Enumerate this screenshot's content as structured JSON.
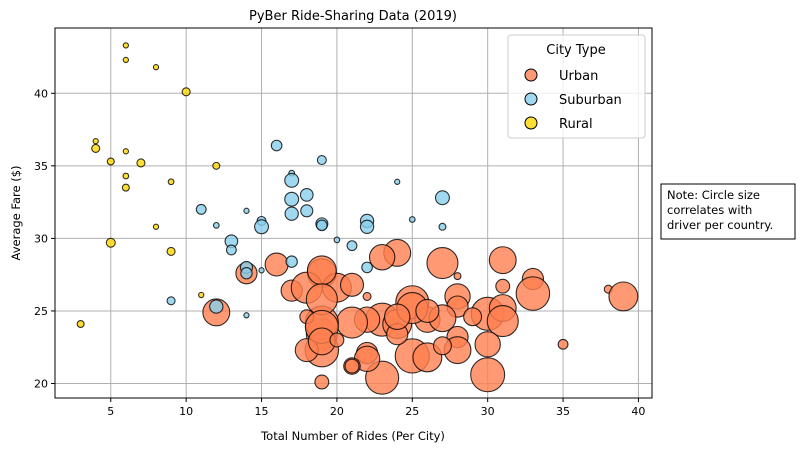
{
  "chart_data": {
    "type": "scatter",
    "title": "PyBer Ride-Sharing Data (2019)",
    "xlabel": "Total Number of Rides (Per City)",
    "ylabel": "Average Fare ($)",
    "xlim": [
      1.3,
      40.9
    ],
    "ylim": [
      19.0,
      44.5
    ],
    "xticks": [
      5,
      10,
      15,
      20,
      25,
      30,
      35,
      40
    ],
    "yticks": [
      20,
      25,
      30,
      35,
      40
    ],
    "grid": true,
    "legend": {
      "title": "City Type",
      "placement": "top-right"
    },
    "note": [
      "Note: Circle size",
      "correlates with",
      "driver per country."
    ],
    "point_fields": [
      "rides",
      "average_fare",
      "driver_count"
    ],
    "series": [
      {
        "name": "Urban",
        "color": "#FF7F50",
        "points": [
          [
            24,
            29.0,
            45
          ],
          [
            23,
            28.7,
            40
          ],
          [
            27,
            28.3,
            60
          ],
          [
            28,
            27.4,
            3
          ],
          [
            31,
            28.5,
            45
          ],
          [
            31,
            26.7,
            12
          ],
          [
            33,
            27.2,
            28
          ],
          [
            33,
            26.2,
            70
          ],
          [
            38,
            26.5,
            4
          ],
          [
            39,
            26.0,
            52
          ],
          [
            35,
            22.7,
            6
          ],
          [
            25,
            25.6,
            68
          ],
          [
            28,
            26.0,
            40
          ],
          [
            28,
            25.3,
            28
          ],
          [
            30,
            24.8,
            68
          ],
          [
            31,
            25.2,
            45
          ],
          [
            31,
            24.3,
            60
          ],
          [
            30,
            22.7,
            40
          ],
          [
            28,
            23.2,
            28
          ],
          [
            28,
            22.3,
            45
          ],
          [
            30,
            20.6,
            72
          ],
          [
            26,
            24.4,
            40
          ],
          [
            27,
            24.5,
            45
          ],
          [
            25,
            21.9,
            73
          ],
          [
            26,
            21.8,
            52
          ],
          [
            23,
            20.4,
            68
          ],
          [
            23,
            24.4,
            68
          ],
          [
            24,
            24.1,
            52
          ],
          [
            24,
            23.4,
            28
          ],
          [
            22,
            24.4,
            40
          ],
          [
            22,
            26.0,
            4
          ],
          [
            22,
            22.1,
            28
          ],
          [
            22,
            21.7,
            40
          ],
          [
            21,
            21.2,
            17
          ],
          [
            21,
            24.2,
            60
          ],
          [
            19,
            27.6,
            52
          ],
          [
            20,
            26.6,
            52
          ],
          [
            21,
            26.8,
            33
          ],
          [
            19,
            23.4,
            60
          ],
          [
            19,
            22.3,
            70
          ],
          [
            19,
            24.2,
            68
          ],
          [
            19,
            20.1,
            12
          ],
          [
            18,
            22.3,
            33
          ],
          [
            16,
            28.2,
            33
          ],
          [
            14,
            27.6,
            28
          ],
          [
            12,
            24.9,
            45
          ],
          [
            17,
            26.4,
            28
          ],
          [
            18,
            26.6,
            60
          ],
          [
            19,
            27.8,
            52
          ],
          [
            19,
            25.8,
            60
          ],
          [
            18,
            24.6,
            12
          ],
          [
            19,
            23.9,
            68
          ],
          [
            19,
            22.9,
            45
          ],
          [
            20,
            23.0,
            12
          ],
          [
            21,
            21.2,
            12
          ],
          [
            25,
            25.2,
            60
          ],
          [
            26,
            25.0,
            33
          ],
          [
            24,
            24.6,
            40
          ],
          [
            27,
            22.6,
            20
          ],
          [
            29,
            24.6,
            20
          ]
        ]
      },
      {
        "name": "Suburban",
        "color": "#87CEEB",
        "points": [
          [
            16,
            36.4,
            7
          ],
          [
            19,
            35.4,
            5
          ],
          [
            24,
            33.9,
            1
          ],
          [
            17,
            34.5,
            2
          ],
          [
            17,
            34.0,
            12
          ],
          [
            18,
            33.0,
            10
          ],
          [
            17,
            32.7,
            12
          ],
          [
            18,
            31.9,
            9
          ],
          [
            17,
            31.7,
            11
          ],
          [
            11,
            32.0,
            6
          ],
          [
            14,
            31.9,
            1
          ],
          [
            19,
            31.0,
            9
          ],
          [
            19,
            30.9,
            7
          ],
          [
            22,
            31.2,
            11
          ],
          [
            22,
            30.8,
            11
          ],
          [
            15,
            31.2,
            5
          ],
          [
            15,
            30.8,
            12
          ],
          [
            12,
            30.9,
            2
          ],
          [
            13,
            29.8,
            10
          ],
          [
            13,
            29.2,
            6
          ],
          [
            20,
            29.9,
            2
          ],
          [
            21,
            29.5,
            6
          ],
          [
            14,
            28.0,
            9
          ],
          [
            14,
            27.6,
            8
          ],
          [
            17,
            28.4,
            8
          ],
          [
            15,
            27.8,
            1
          ],
          [
            22,
            28.0,
            7
          ],
          [
            25,
            31.3,
            2
          ],
          [
            27,
            32.8,
            12
          ],
          [
            27,
            30.8,
            3
          ],
          [
            9,
            25.7,
            4
          ],
          [
            12,
            25.3,
            11
          ],
          [
            14,
            24.7,
            1
          ]
        ]
      },
      {
        "name": "Rural",
        "color": "#FFD700",
        "points": [
          [
            6,
            43.3,
            1
          ],
          [
            6,
            42.3,
            1
          ],
          [
            8,
            41.8,
            1
          ],
          [
            10,
            40.1,
            4
          ],
          [
            4,
            36.7,
            1
          ],
          [
            4,
            36.2,
            4
          ],
          [
            6,
            36.0,
            1
          ],
          [
            5,
            35.3,
            3
          ],
          [
            7,
            35.2,
            4
          ],
          [
            12,
            35.0,
            3
          ],
          [
            6,
            34.3,
            2
          ],
          [
            6,
            33.5,
            3
          ],
          [
            9,
            33.9,
            2
          ],
          [
            8,
            30.8,
            1
          ],
          [
            5,
            29.7,
            5
          ],
          [
            9,
            29.1,
            4
          ],
          [
            11,
            26.1,
            1
          ],
          [
            3,
            24.1,
            3
          ]
        ]
      }
    ]
  }
}
